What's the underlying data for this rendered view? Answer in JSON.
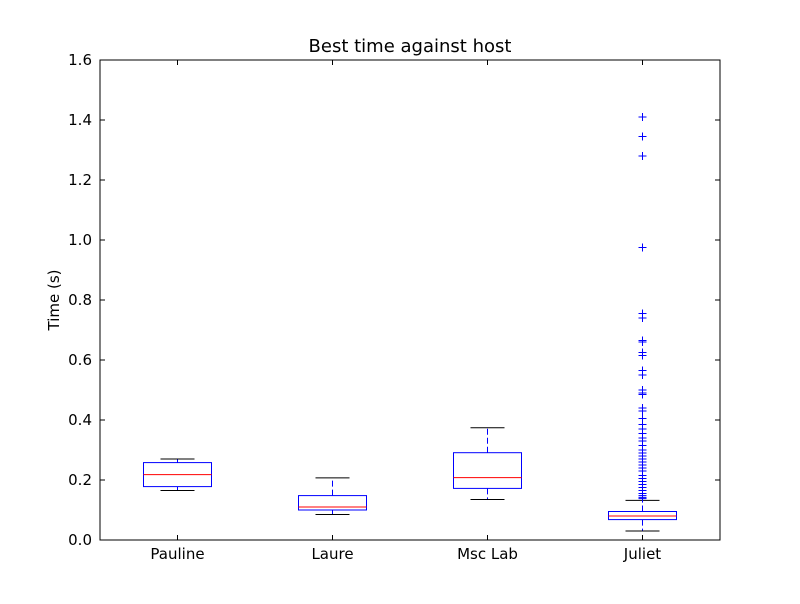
{
  "chart_data": {
    "type": "box",
    "title": "Best time against host",
    "xlabel": "",
    "ylabel": "Time (s)",
    "ylim": [
      0,
      1.6
    ],
    "yticks": [
      "0.0",
      "0.2",
      "0.4",
      "0.6",
      "0.8",
      "1.0",
      "1.2",
      "1.4",
      "1.6"
    ],
    "categories": [
      "Pauline",
      "Laure",
      "Msc Lab",
      "Juliet"
    ],
    "grid": false,
    "colors": {
      "box": "#0000ff",
      "median": "#ff0000",
      "whisker_cap": "#000000",
      "flier": "#0000ff"
    },
    "boxes": [
      {
        "category": "Pauline",
        "whisker_low": 0.165,
        "q1": 0.178,
        "median": 0.218,
        "q3": 0.258,
        "whisker_high": 0.27,
        "fliers": []
      },
      {
        "category": "Laure",
        "whisker_low": 0.085,
        "q1": 0.1,
        "median": 0.11,
        "q3": 0.148,
        "whisker_high": 0.207,
        "fliers": []
      },
      {
        "category": "Msc Lab",
        "whisker_low": 0.135,
        "q1": 0.172,
        "median": 0.208,
        "q3": 0.291,
        "whisker_high": 0.374,
        "fliers": []
      },
      {
        "category": "Juliet",
        "whisker_low": 0.03,
        "q1": 0.068,
        "median": 0.08,
        "q3": 0.095,
        "whisker_high": 0.132,
        "fliers": [
          1.41,
          1.345,
          1.28,
          0.975,
          0.755,
          0.74,
          0.665,
          0.66,
          0.625,
          0.615,
          0.565,
          0.55,
          0.5,
          0.49,
          0.485,
          0.44,
          0.43,
          0.405,
          0.385,
          0.37,
          0.355,
          0.34,
          0.33,
          0.315,
          0.3,
          0.29,
          0.28,
          0.27,
          0.26,
          0.25,
          0.24,
          0.23,
          0.215,
          0.205,
          0.195,
          0.185,
          0.175,
          0.165,
          0.155,
          0.148,
          0.142,
          0.138
        ]
      }
    ]
  }
}
